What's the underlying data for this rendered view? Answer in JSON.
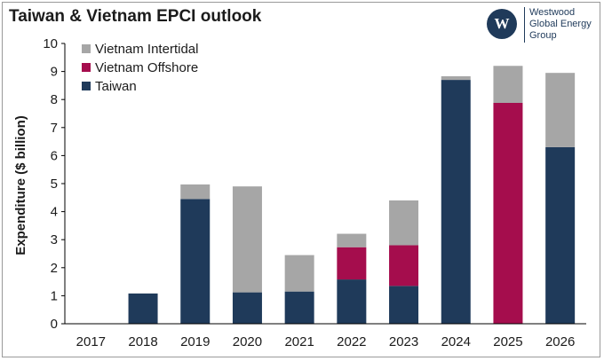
{
  "title": "Taiwan & Vietnam EPCI outlook",
  "logo": {
    "mark": "W",
    "lines": [
      "Westwood",
      "Global Energy",
      "Group"
    ]
  },
  "colors": {
    "taiwan": "#1f3a5a",
    "vietnam_offshore": "#a50d4d",
    "vietnam_intertidal": "#a6a6a6",
    "axis": "#000000"
  },
  "chart_data": {
    "type": "bar",
    "stacked": true,
    "title": "Taiwan & Vietnam EPCI outlook",
    "xlabel": "",
    "ylabel": "Expenditure ($ billion)",
    "ylim": [
      0,
      10
    ],
    "yticks": [
      "0",
      "1",
      "2",
      "3",
      "4",
      "5",
      "6",
      "7",
      "8",
      "9",
      "10"
    ],
    "grid": false,
    "legend_position": "top-left",
    "categories": [
      "2017",
      "2018",
      "2019",
      "2020",
      "2021",
      "2022",
      "2023",
      "2024",
      "2025",
      "2026"
    ],
    "series": [
      {
        "name": "Taiwan",
        "color": "#1f3a5a",
        "values": [
          0,
          1.08,
          4.45,
          1.12,
          1.15,
          1.58,
          1.35,
          8.7,
          0,
          6.3
        ]
      },
      {
        "name": "Vietnam Offshore",
        "color": "#a50d4d",
        "values": [
          0,
          0,
          0,
          0,
          0,
          1.15,
          1.45,
          0,
          7.88,
          0
        ]
      },
      {
        "name": "Vietnam Intertidal",
        "color": "#a6a6a6",
        "values": [
          0,
          0,
          0.52,
          3.78,
          1.3,
          0.48,
          1.6,
          0.13,
          1.32,
          2.65
        ]
      }
    ],
    "legend_order": [
      "Vietnam Intertidal",
      "Vietnam Offshore",
      "Taiwan"
    ]
  }
}
